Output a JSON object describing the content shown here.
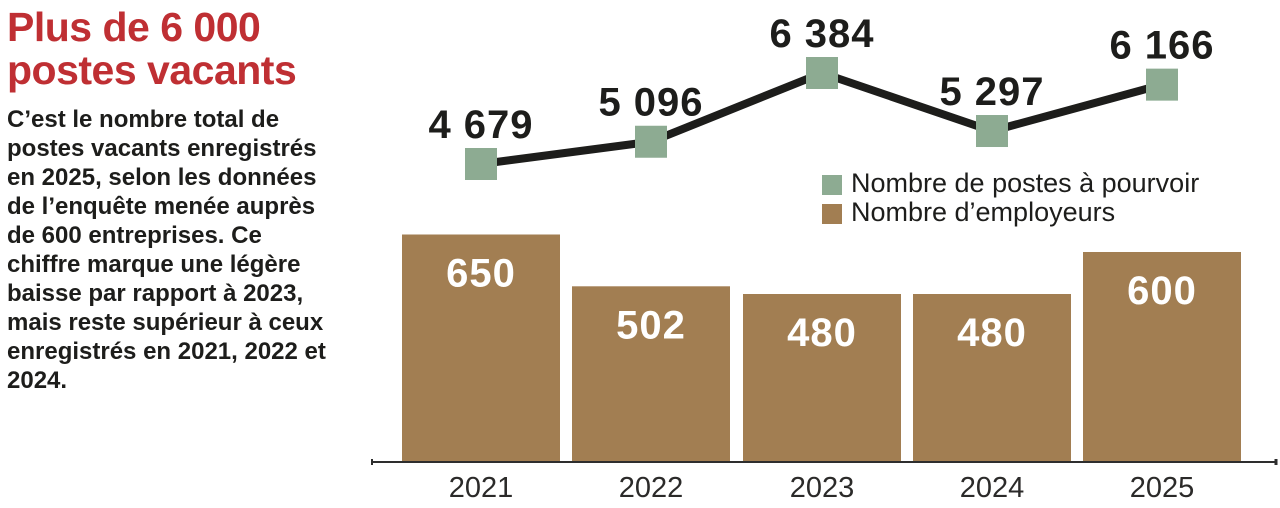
{
  "panel": {
    "title": "Plus de 6 000 postes vacants",
    "body": "C’est le nombre total de postes vacants enregistrés en 2025, selon les données de l’enquête menée auprès de 600 entreprises. Ce chiffre marque une légère baisse par rapport à 2023, mais reste supérieur à ceux enregistrés en 2021, 2022 et 2024."
  },
  "colors": {
    "accent_red": "#bf2f33",
    "marker_green": "#8dab92",
    "bar_brown": "#a27e52",
    "line_black": "#1d1d1b",
    "axis_gray": "#2e2e2e",
    "text_dark": "#1d1d1b",
    "bar_value_white": "#ffffff"
  },
  "chart_data": {
    "type": "combo line+bar",
    "categories": [
      "2021",
      "2022",
      "2023",
      "2024",
      "2025"
    ],
    "series": [
      {
        "name": "Nombre de postes à pourvoir",
        "type": "line",
        "marker": "square",
        "color": "#8dab92",
        "values": [
          4679,
          5096,
          6384,
          5297,
          6166
        ],
        "labels": [
          "4 679",
          "5 096",
          "6 384",
          "5 297",
          "6 166"
        ]
      },
      {
        "name": "Nombre d’employeurs",
        "type": "bar",
        "color": "#a27e52",
        "values": [
          650,
          502,
          480,
          480,
          600
        ],
        "labels": [
          "650",
          "502",
          "480",
          "480",
          "600"
        ]
      }
    ],
    "legend": [
      {
        "label": "Nombre de postes à pourvoir",
        "color": "#8dab92"
      },
      {
        "label": "Nombre d’employeurs",
        "color": "#a27e52"
      }
    ],
    "legend_position": "middle-right",
    "grid": false,
    "bar_ylim": [
      0,
      650
    ],
    "line_ylim_approx": [
      4400,
      6600
    ]
  }
}
